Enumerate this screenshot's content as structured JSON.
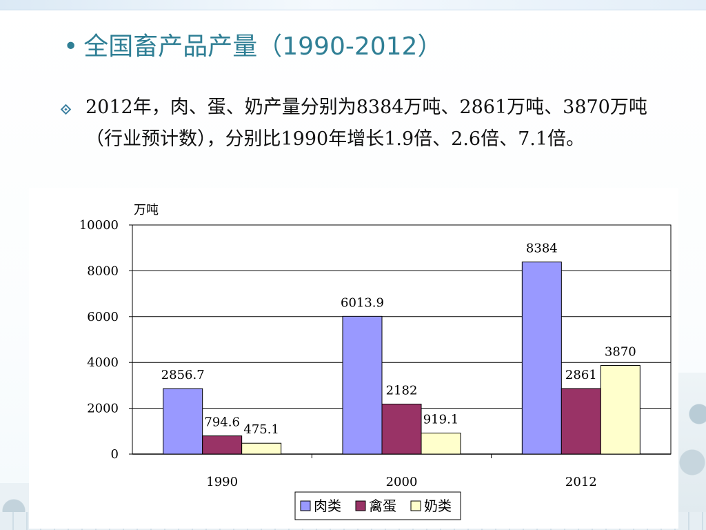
{
  "slide": {
    "title": "全国畜产品产量（1990-2012）",
    "bullet": "◆",
    "body": "2012年，肉、蛋、奶产量分别为8384万吨、2861万吨、3870万吨（行业预计数），分别比1990年增长1.9倍、2.6倍、7.1倍。"
  },
  "chart_data": {
    "type": "bar",
    "title": "",
    "ylabel": "万吨",
    "xlabel": "",
    "ylim": [
      0,
      10000
    ],
    "yticks": [
      0,
      2000,
      4000,
      6000,
      8000,
      10000
    ],
    "categories": [
      "1990",
      "2000",
      "2012"
    ],
    "series": [
      {
        "name": "肉类",
        "color": "#9999ff",
        "values": [
          2856.7,
          6013.9,
          8384
        ],
        "labels": [
          "2856.7",
          "6013.9",
          "8384"
        ]
      },
      {
        "name": "禽蛋",
        "color": "#993366",
        "values": [
          794.6,
          2182,
          2861
        ],
        "labels": [
          "794.6",
          "2182",
          "2861"
        ]
      },
      {
        "name": "奶类",
        "color": "#ffffcc",
        "values": [
          475.1,
          919.1,
          3870
        ],
        "labels": [
          "475.1",
          "919.1",
          "3870"
        ]
      }
    ],
    "grid": true,
    "legend": "bottom"
  }
}
